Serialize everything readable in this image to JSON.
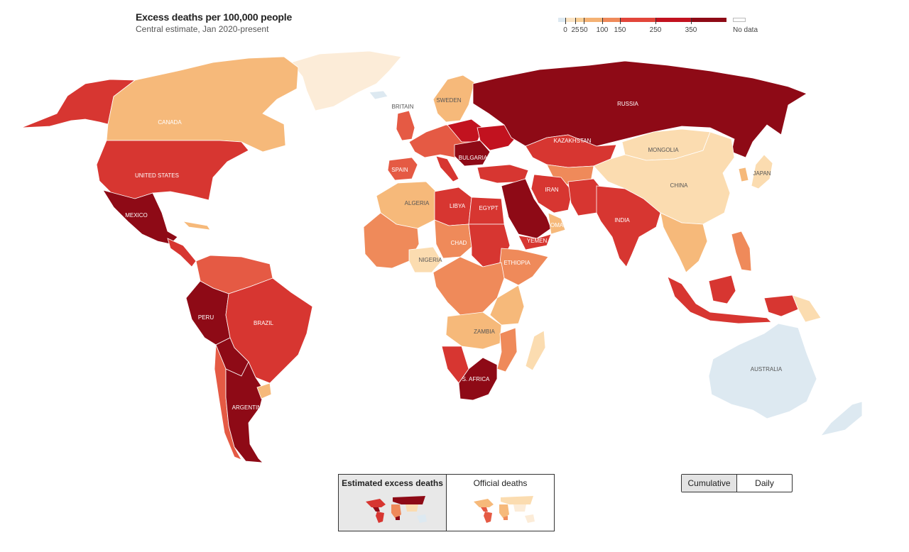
{
  "header": {
    "title": "Excess deaths per 100,000 people",
    "subtitle": "Central estimate, Jan 2020-present"
  },
  "legend": {
    "stops": [
      {
        "label": "0",
        "color": "#dde9f1"
      },
      {
        "label": "25",
        "color": "#fbe3c2"
      },
      {
        "label": "50",
        "color": "#f9cf96"
      },
      {
        "label": "100",
        "color": "#f4b274"
      },
      {
        "label": "150",
        "color": "#ef8a5a"
      },
      {
        "label": "250",
        "color": "#e2463a"
      },
      {
        "label": "350",
        "color": "#c2121f"
      }
    ],
    "top_color": "#8e0a16",
    "no_data_label": "No data",
    "no_data_color": "#ffffff"
  },
  "colors": {
    "very_high": "#8e0a16",
    "high": "#d73631",
    "mid_high": "#e55a44",
    "mid": "#ef8a5a",
    "low": "#f6b97a",
    "very_low": "#fbdcb0",
    "negative": "#dde9f1"
  },
  "countries": [
    {
      "name": "CANADA",
      "class": "low"
    },
    {
      "name": "UNITED STATES",
      "class": "high"
    },
    {
      "name": "MEXICO",
      "class": "very_high"
    },
    {
      "name": "PERU",
      "class": "very_high"
    },
    {
      "name": "BRAZIL",
      "class": "high"
    },
    {
      "name": "ARGENTINA",
      "class": "very_high"
    },
    {
      "name": "BRITAIN",
      "class": "mid_high"
    },
    {
      "name": "SWEDEN",
      "class": "low"
    },
    {
      "name": "SPAIN",
      "class": "mid_high"
    },
    {
      "name": "BULGARIA",
      "class": "very_high"
    },
    {
      "name": "RUSSIA",
      "class": "very_high"
    },
    {
      "name": "KAZAKHSTAN",
      "class": "high"
    },
    {
      "name": "MONGOLIA",
      "class": "very_low"
    },
    {
      "name": "CHINA",
      "class": "very_low"
    },
    {
      "name": "JAPAN",
      "class": "very_low"
    },
    {
      "name": "IRAN",
      "class": "high"
    },
    {
      "name": "INDIA",
      "class": "high"
    },
    {
      "name": "OMAN",
      "class": "very_high"
    },
    {
      "name": "YEMEN",
      "class": "high"
    },
    {
      "name": "ALGERIA",
      "class": "low"
    },
    {
      "name": "LIBYA",
      "class": "high"
    },
    {
      "name": "EGYPT",
      "class": "high"
    },
    {
      "name": "CHAD",
      "class": "mid"
    },
    {
      "name": "NIGERIA",
      "class": "very_low"
    },
    {
      "name": "ETHIOPIA",
      "class": "mid"
    },
    {
      "name": "ZAMBIA",
      "class": "low"
    },
    {
      "name": "S. AFRICA",
      "class": "very_high"
    },
    {
      "name": "AUSTRALIA",
      "class": "negative"
    }
  ],
  "toggle": {
    "options": [
      {
        "label": "Estimated excess deaths",
        "active": true
      },
      {
        "label": "Official deaths",
        "active": false
      }
    ]
  },
  "timeframe": {
    "options": [
      {
        "label": "Cumulative",
        "active": true
      },
      {
        "label": "Daily",
        "active": false
      }
    ]
  }
}
